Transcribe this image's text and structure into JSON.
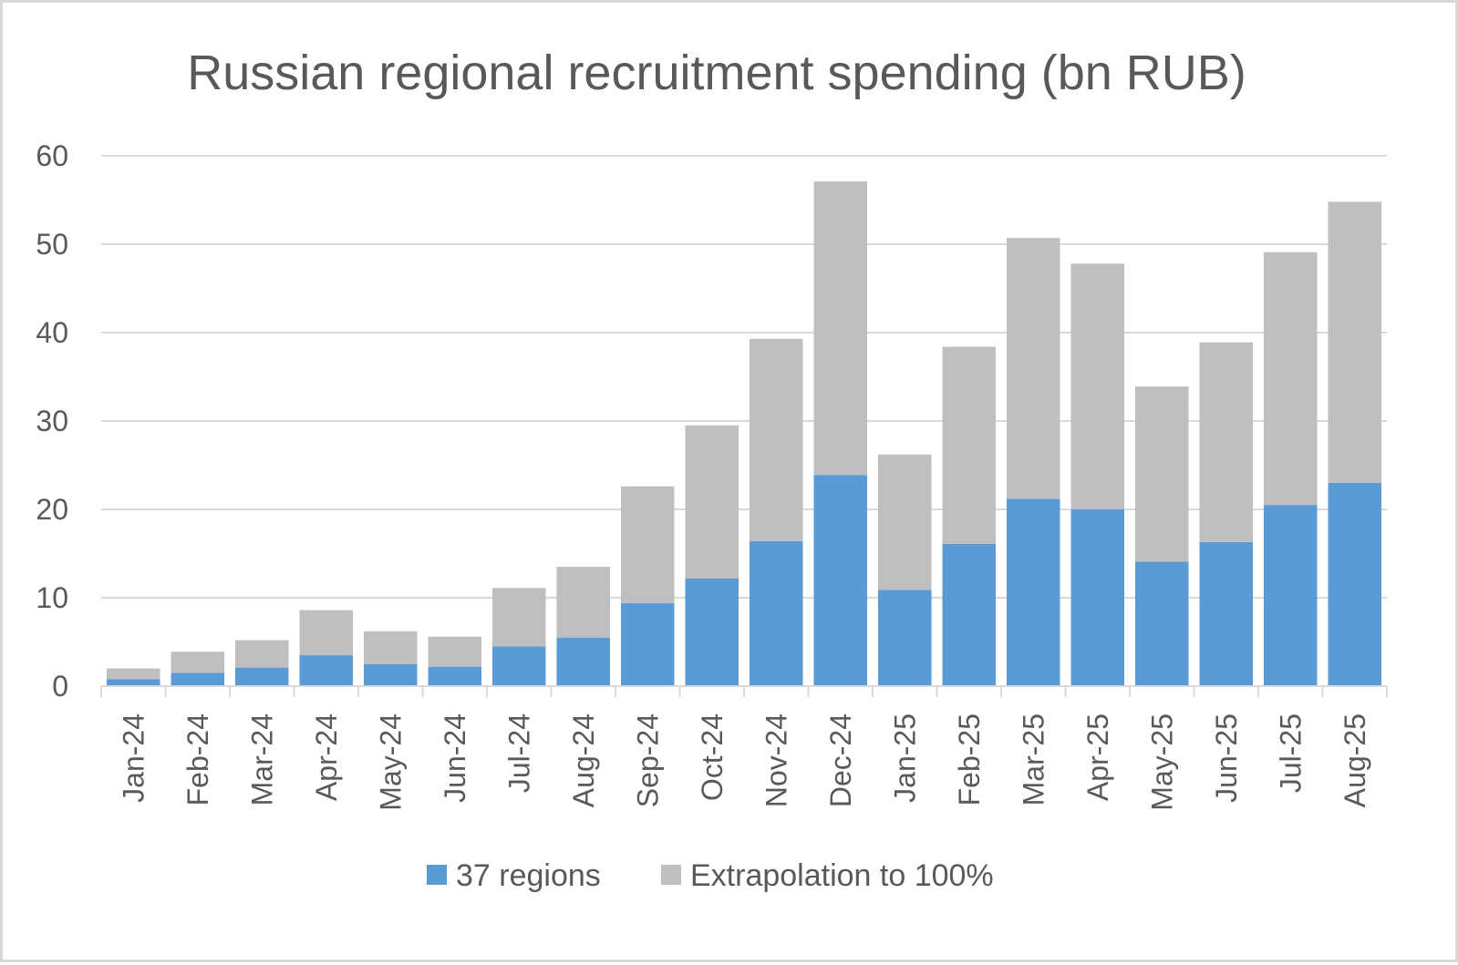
{
  "chart_data": {
    "type": "bar",
    "stacked": true,
    "title": "Russian regional recruitment spending (bn RUB)",
    "categories": [
      "Jan-24",
      "Feb-24",
      "Mar-24",
      "Apr-24",
      "May-24",
      "Jun-24",
      "Jul-24",
      "Aug-24",
      "Sep-24",
      "Oct-24",
      "Nov-24",
      "Dec-24",
      "Jan-25",
      "Feb-25",
      "Mar-25",
      "Apr-25",
      "May-25",
      "Jun-25",
      "Jul-25",
      "Aug-25"
    ],
    "series": [
      {
        "name": "37 regions",
        "color": "#5b9bd5",
        "values": [
          0.8,
          1.5,
          2.1,
          3.5,
          2.5,
          2.2,
          4.5,
          5.5,
          9.4,
          12.2,
          16.4,
          23.9,
          10.9,
          16.1,
          21.2,
          20.0,
          14.1,
          16.3,
          20.5,
          23.0
        ]
      },
      {
        "name": "Extrapolation to 100%",
        "color": "#bfbfbf",
        "values": [
          1.2,
          2.4,
          3.1,
          5.1,
          3.7,
          3.4,
          6.6,
          8.0,
          13.2,
          17.3,
          22.9,
          33.2,
          15.3,
          22.3,
          29.5,
          27.8,
          19.8,
          22.6,
          28.6,
          31.8
        ]
      }
    ],
    "ylim": [
      0,
      60
    ],
    "yticks": [
      "0",
      "10",
      "20",
      "30",
      "40",
      "50",
      "60"
    ],
    "grid": true,
    "legend_position": "bottom"
  }
}
